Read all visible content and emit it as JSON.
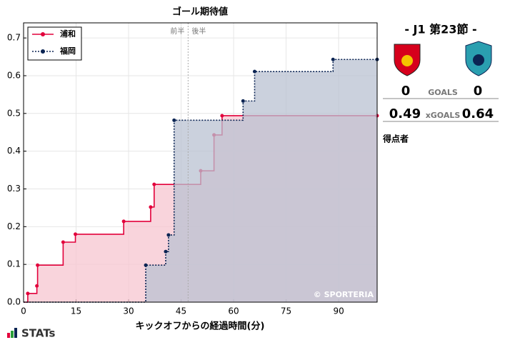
{
  "chart_data": {
    "type": "step",
    "title": "ゴール期待値",
    "x_label": "キックオフからの経過時間(分)",
    "xlim": [
      0,
      101
    ],
    "ylim": [
      0,
      0.74
    ],
    "xticks": [
      0,
      15,
      30,
      45,
      60,
      75,
      90
    ],
    "yticks": [
      {
        "value": 0,
        "label": "0.0"
      },
      0.1,
      0.2,
      0.3,
      0.4,
      0.5,
      0.6,
      0.7
    ],
    "grid": true,
    "legend": "upper left",
    "halftime": {
      "x": 47,
      "left_label": "前半",
      "right_label": "後半"
    },
    "watermark": "© SPORTERIA",
    "series": [
      {
        "name": "浦和",
        "color": "#e2003b",
        "fill": "#f7c6d0",
        "dash": false,
        "x": [
          1.2,
          3.8,
          4,
          11.3,
          14.8,
          28.6,
          36.3,
          37.3,
          50.6,
          54.4,
          56.7,
          101
        ],
        "values": [
          0.023,
          0.043,
          0.098,
          0.159,
          0.18,
          0.214,
          0.252,
          0.312,
          0.348,
          0.443,
          0.494,
          0.494
        ]
      },
      {
        "name": "福岡",
        "color": "#0b2453",
        "fill": "#b9c1d2",
        "dash": true,
        "x": [
          34.9,
          40.6,
          41.4,
          43,
          62.7,
          66,
          88.4,
          101
        ],
        "values": [
          0.098,
          0.134,
          0.178,
          0.482,
          0.533,
          0.611,
          0.643,
          0.643
        ]
      }
    ]
  },
  "scoreboard": {
    "title": "- J1 第23節 -",
    "home_goals": "0",
    "goals_label": "GOALS",
    "away_goals": "0",
    "home_xg": "0.49",
    "xg_label": "xGOALS",
    "away_xg": "0.64",
    "scorers_label": "得点者"
  },
  "brand": "STATs"
}
